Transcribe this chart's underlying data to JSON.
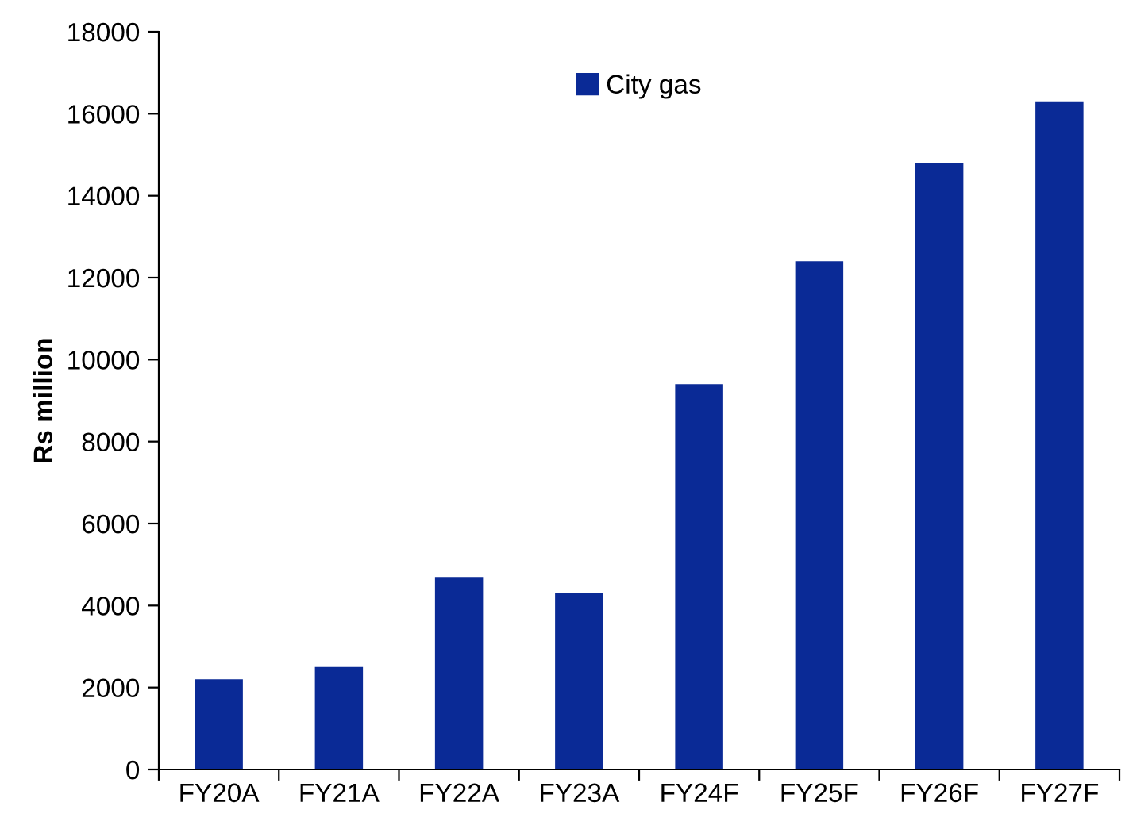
{
  "chart_data": {
    "type": "bar",
    "ylabel": "Rs million",
    "categories": [
      "FY20A",
      "FY21A",
      "FY22A",
      "FY23A",
      "FY24F",
      "FY25F",
      "FY26F",
      "FY27F"
    ],
    "series": [
      {
        "name": "City gas",
        "color": "#0a2a96",
        "values": [
          2200,
          2500,
          4700,
          4300,
          9400,
          12400,
          14800,
          16300
        ]
      }
    ],
    "ylim": [
      0,
      18000
    ],
    "yticks": [
      0,
      2000,
      4000,
      6000,
      8000,
      10000,
      12000,
      14000,
      16000,
      18000
    ],
    "grid": false,
    "legend": "top"
  }
}
